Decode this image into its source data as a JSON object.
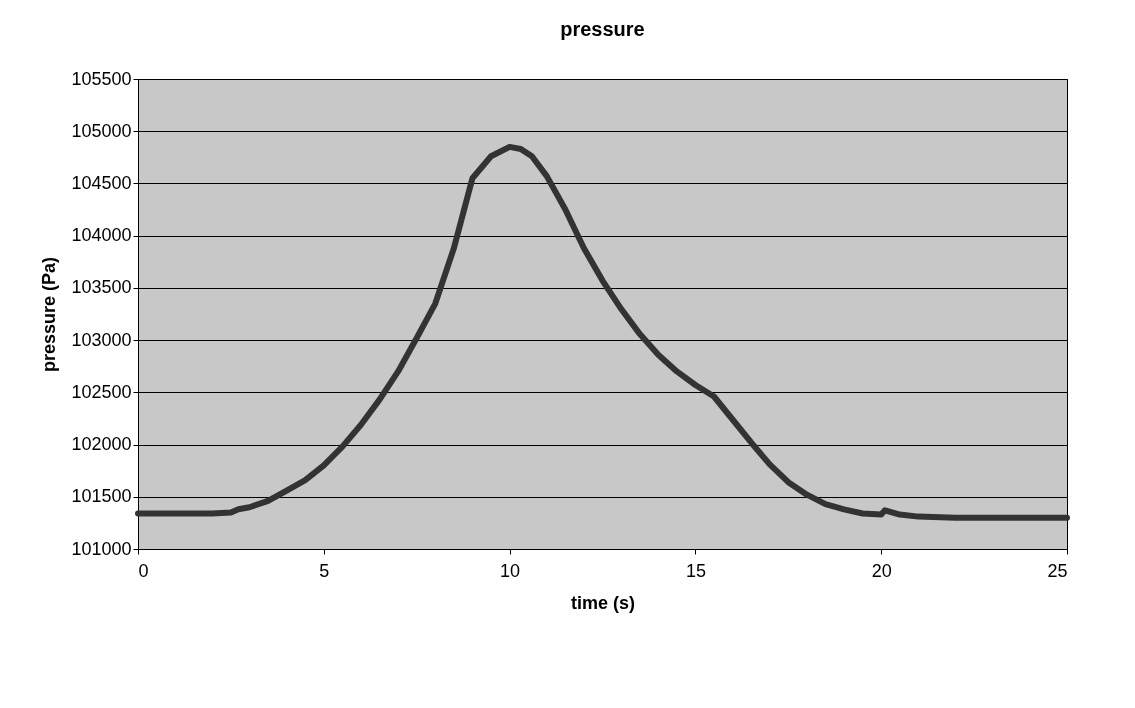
{
  "chart_data": {
    "type": "line",
    "title": "pressure",
    "xlabel": "time (s)",
    "ylabel": "pressure (Pa)",
    "x": [
      0,
      1,
      2,
      2.5,
      2.7,
      3,
      3.5,
      4,
      4.5,
      5,
      5.5,
      6,
      6.5,
      7,
      7.5,
      8,
      8.5,
      9,
      9.5,
      10,
      10.3,
      10.6,
      11,
      11.5,
      12,
      12.5,
      13,
      13.5,
      14,
      14.5,
      15,
      15.5,
      16,
      16.5,
      17,
      17.5,
      18,
      18.5,
      19,
      19.5,
      20,
      20.1,
      20.5,
      21,
      22,
      23,
      24,
      25
    ],
    "series": [
      {
        "color": "#333333",
        "values": [
          101340,
          101340,
          101340,
          101350,
          101380,
          101400,
          101460,
          101560,
          101660,
          101800,
          101980,
          102190,
          102430,
          102700,
          103020,
          103350,
          103880,
          104550,
          104760,
          104850,
          104830,
          104760,
          104570,
          104250,
          103880,
          103570,
          103300,
          103060,
          102860,
          102700,
          102570,
          102460,
          102240,
          102020,
          101810,
          101640,
          101520,
          101430,
          101380,
          101340,
          101330,
          101370,
          101330,
          101310,
          101300,
          101300,
          101300,
          101300
        ]
      }
    ],
    "xlim": [
      0,
      25
    ],
    "xticks": [
      0,
      5,
      10,
      15,
      20,
      25
    ],
    "ylim": [
      101000,
      105500
    ],
    "yticks": [
      101000,
      101500,
      102000,
      102500,
      103000,
      103500,
      104000,
      104500,
      105000,
      105500
    ],
    "grid": "y"
  }
}
